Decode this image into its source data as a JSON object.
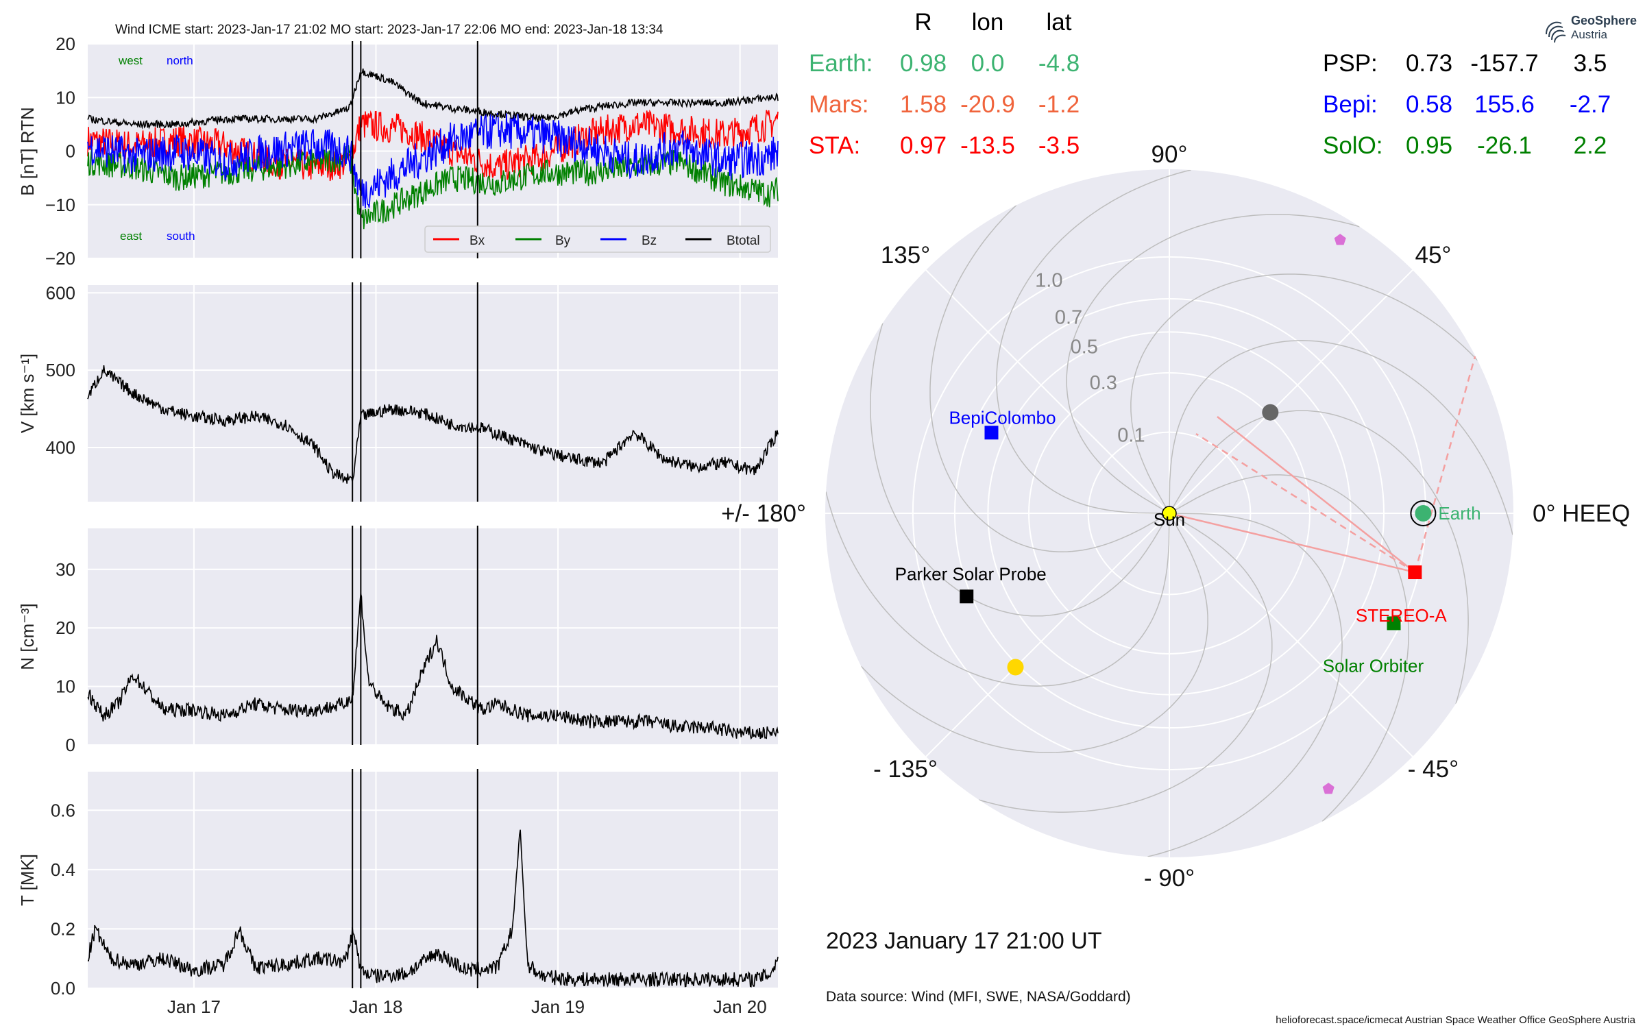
{
  "header": {
    "title": "Wind    ICME start: 2023-Jan-17 21:02   MO start: 2023-Jan-17 22:06   MO end: 2023-Jan-18 13:34"
  },
  "table": {
    "columns": [
      "R",
      "lon",
      "lat"
    ],
    "left_rows": [
      {
        "name": "Earth:",
        "R": "0.98",
        "lon": "0.0",
        "lat": "-4.8",
        "color": "#3cb371"
      },
      {
        "name": "Mars:",
        "R": "1.58",
        "lon": "-20.9",
        "lat": "-1.2",
        "color": "#f0643c"
      },
      {
        "name": "STA:",
        "R": "0.97",
        "lon": "-13.5",
        "lat": "-3.5",
        "color": "#ff0000"
      }
    ],
    "right_rows": [
      {
        "name": "PSP:",
        "R": "0.73",
        "lon": "-157.7",
        "lat": "3.5",
        "color": "#000000"
      },
      {
        "name": "Bepi:",
        "R": "0.58",
        "lon": "155.6",
        "lat": "-2.7",
        "color": "#0000ff"
      },
      {
        "name": "SolO:",
        "R": "0.95",
        "lon": "-26.1",
        "lat": "2.2",
        "color": "#008000"
      }
    ]
  },
  "logo": {
    "name": "GeoSphere",
    "sub": "Austria",
    "icon": "geosphere-logo-icon"
  },
  "plot_labels": {
    "west": "west",
    "north": "north",
    "east": "east",
    "south": "south"
  },
  "legend": [
    {
      "label": "Bx",
      "color": "#ff0000"
    },
    {
      "label": "By",
      "color": "#008000"
    },
    {
      "label": "Bz",
      "color": "#0000ff"
    },
    {
      "label": "Btotal",
      "color": "#000000"
    }
  ],
  "polar": {
    "angle_labels": [
      "90°",
      "45°",
      "0° HEEQ",
      "- 45°",
      "- 90°",
      "- 135°",
      "+/- 180°",
      "135°"
    ],
    "r_ticks": [
      "0.1",
      "0.3",
      "0.5",
      "0.7",
      "1.0"
    ],
    "bodies": {
      "sun": "Sun",
      "earth": "Earth",
      "stereo_a": "STEREO-A",
      "solar_orbiter": "Solar Orbiter",
      "bepi": "BepiColombo",
      "psp": "Parker Solar Probe"
    }
  },
  "footer": {
    "datetime": "2023 January 17  21:00 UT",
    "source": "Data source: Wind (MFI, SWE, NASA/Goddard)",
    "credits": "helioforecast.space/icmecat   Austrian Space Weather Office   GeoSphere Austria"
  },
  "chart_data": [
    {
      "type": "line",
      "panel": "magnetic field",
      "ylabel": "B [nT] RTN",
      "ylim": [
        -20,
        20
      ],
      "yticks": [
        "20",
        "10",
        "0",
        "−10",
        "−20"
      ],
      "x_range": [
        "2023-01-16 10:00",
        "2023-01-20 05:00"
      ],
      "xticks": [
        "Jan 17",
        "Jan 18",
        "Jan 19",
        "Jan 20"
      ],
      "grid": true,
      "legend_position": "bottom-right",
      "event_times": [
        "2023-01-17 21:02",
        "2023-01-17 22:06",
        "2023-01-18 13:34"
      ],
      "series": [
        {
          "name": "Bx",
          "x_hours": [
            0,
            6,
            12,
            18,
            24,
            30,
            34.5,
            36,
            42,
            48,
            54,
            60,
            66,
            72,
            78,
            84,
            90,
            91
          ],
          "values": [
            2,
            1,
            2,
            1,
            -2,
            -3,
            -2,
            5,
            4,
            0,
            -3,
            -1,
            3,
            5,
            4,
            3,
            5,
            6
          ]
        },
        {
          "name": "By",
          "x_hours": [
            0,
            6,
            12,
            18,
            24,
            30,
            34.5,
            36,
            42,
            48,
            54,
            60,
            66,
            72,
            78,
            84,
            90,
            91
          ],
          "values": [
            -2,
            -3,
            -5,
            -4,
            -3,
            -2,
            -1,
            -13,
            -9,
            -5,
            -6,
            -4,
            -4,
            -3,
            -2,
            -6,
            -8,
            -7
          ]
        },
        {
          "name": "Bz",
          "x_hours": [
            0,
            6,
            12,
            18,
            24,
            30,
            34.5,
            36,
            42,
            48,
            54,
            60,
            66,
            72,
            78,
            84,
            90,
            91
          ],
          "values": [
            1,
            -1,
            0,
            -2,
            0,
            1,
            0,
            -8,
            -3,
            2,
            4,
            3,
            1,
            -2,
            1,
            -2,
            -1,
            0
          ]
        },
        {
          "name": "Btotal",
          "x_hours": [
            0,
            6,
            12,
            18,
            24,
            30,
            34.5,
            36,
            40,
            44,
            48,
            54,
            60,
            66,
            72,
            78,
            84,
            90,
            91
          ],
          "values": [
            6,
            5,
            5,
            6,
            6,
            6,
            8,
            15,
            13,
            9,
            8,
            7,
            6,
            8,
            9,
            9,
            9,
            10,
            10
          ]
        }
      ]
    },
    {
      "type": "line",
      "panel": "speed",
      "ylabel": "V [km s⁻¹]",
      "ylim": [
        330,
        610
      ],
      "yticks": [
        "600",
        "500",
        "400"
      ],
      "series": [
        {
          "name": "V",
          "x_hours": [
            0,
            2,
            6,
            10,
            14,
            18,
            22,
            26,
            30,
            32,
            34,
            35,
            36,
            40,
            44,
            48,
            52,
            56,
            60,
            64,
            68,
            72,
            76,
            80,
            84,
            88,
            91
          ],
          "values": [
            465,
            500,
            470,
            450,
            440,
            435,
            440,
            430,
            400,
            370,
            358,
            360,
            440,
            450,
            445,
            430,
            425,
            410,
            395,
            385,
            380,
            420,
            385,
            375,
            380,
            370,
            420
          ]
        }
      ]
    },
    {
      "type": "line",
      "panel": "density",
      "ylabel": "N [cm⁻³]",
      "ylim": [
        0,
        37
      ],
      "yticks": [
        "30",
        "20",
        "10",
        "0"
      ],
      "series": [
        {
          "name": "N",
          "x_hours": [
            0,
            2,
            4,
            6,
            10,
            14,
            18,
            22,
            26,
            30,
            34,
            35,
            36,
            37,
            39,
            42,
            44,
            46,
            48,
            50,
            52,
            54,
            58,
            62,
            66,
            70,
            74,
            78,
            82,
            86,
            90,
            91
          ],
          "values": [
            9,
            5,
            7,
            12,
            6,
            6,
            5,
            7,
            6,
            6,
            7,
            9,
            26,
            11,
            7,
            5,
            12,
            18,
            10,
            8,
            6,
            7,
            5,
            5,
            4,
            4,
            4,
            3,
            3,
            2,
            2,
            2
          ]
        }
      ]
    },
    {
      "type": "line",
      "panel": "temperature",
      "ylabel": "T [MK]",
      "ylim": [
        0,
        0.73
      ],
      "yticks": [
        "0.6",
        "0.4",
        "0.2",
        "0.0"
      ],
      "series": [
        {
          "name": "T",
          "x_hours": [
            0,
            1,
            3,
            6,
            10,
            14,
            18,
            20,
            22,
            26,
            30,
            34,
            35,
            36,
            38,
            42,
            46,
            48,
            50,
            54,
            56,
            57,
            58,
            60,
            64,
            68,
            72,
            76,
            80,
            84,
            88,
            90,
            91
          ],
          "values": [
            0.1,
            0.2,
            0.1,
            0.08,
            0.1,
            0.06,
            0.08,
            0.2,
            0.07,
            0.08,
            0.1,
            0.09,
            0.2,
            0.06,
            0.04,
            0.05,
            0.12,
            0.09,
            0.06,
            0.07,
            0.2,
            0.54,
            0.08,
            0.04,
            0.03,
            0.03,
            0.03,
            0.03,
            0.03,
            0.03,
            0.03,
            0.05,
            0.1
          ]
        }
      ]
    },
    {
      "type": "scatter",
      "panel": "polar position plot",
      "projection": "polar",
      "r_scale": "sqrt",
      "r_ticks": [
        0.1,
        0.3,
        0.5,
        0.7,
        1.0
      ],
      "theta_ticks_deg": [
        0,
        45,
        90,
        135,
        180,
        -135,
        -90,
        -45
      ],
      "points": [
        {
          "name": "Sun",
          "r": 0.0,
          "lon_deg": 0.0,
          "color": "#ffff00"
        },
        {
          "name": "Earth",
          "r": 0.98,
          "lon_deg": 0.0,
          "color": "#3cb371"
        },
        {
          "name": "STEREO-A",
          "r": 0.97,
          "lon_deg": -13.5,
          "color": "#ff0000"
        },
        {
          "name": "Solar Orbiter",
          "r": 0.95,
          "lon_deg": -26.1,
          "color": "#008000"
        },
        {
          "name": "BepiColombo",
          "r": 0.58,
          "lon_deg": 155.6,
          "color": "#0000ff"
        },
        {
          "name": "Parker Solar Probe",
          "r": 0.73,
          "lon_deg": -157.7,
          "color": "#000000"
        },
        {
          "name": "",
          "r": 0.72,
          "lon_deg": -135.0,
          "color": "#ffd700"
        },
        {
          "name": "",
          "r": 0.31,
          "lon_deg": 45.0,
          "color": "#666666"
        },
        {
          "name": "",
          "r": 1.58,
          "lon_deg": 58.0,
          "color": "#da70d6"
        },
        {
          "name": "",
          "r": 1.54,
          "lon_deg": -60.0,
          "color": "#da70d6"
        }
      ]
    }
  ]
}
